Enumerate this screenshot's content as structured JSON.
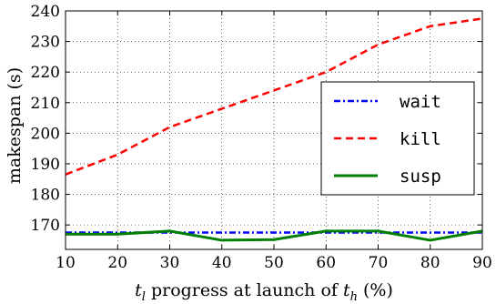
{
  "chart_data": {
    "type": "line",
    "x": [
      10,
      20,
      30,
      40,
      50,
      60,
      70,
      80,
      90
    ],
    "series": [
      {
        "name": "wait",
        "values": [
          167.5,
          167.5,
          167.5,
          167.5,
          167.5,
          167.5,
          167.5,
          167.5,
          167.5
        ],
        "color": "#0000ff",
        "dash": "dash-dot"
      },
      {
        "name": "kill",
        "values": [
          186.5,
          193,
          202,
          208,
          214,
          220,
          229,
          235,
          237.5
        ],
        "color": "#ff0000",
        "dash": "dashed"
      },
      {
        "name": "susp",
        "values": [
          167,
          167,
          168,
          165,
          165.2,
          168,
          168,
          165,
          168
        ],
        "color": "#007f00",
        "dash": "solid"
      }
    ],
    "xlim": [
      10,
      90
    ],
    "ylim": [
      162,
      240
    ],
    "xticks": [
      "10",
      "20",
      "30",
      "40",
      "50",
      "60",
      "70",
      "80",
      "90"
    ],
    "yticks": [
      "170",
      "180",
      "190",
      "200",
      "210",
      "220",
      "230",
      "240"
    ],
    "ytick_values": [
      170,
      180,
      190,
      200,
      210,
      220,
      230,
      240
    ],
    "xlabel": {
      "pre": "t",
      "sub1": "l",
      "mid": " progress at launch of ",
      "t2": "t",
      "sub2": "h",
      "post": " (%)"
    },
    "ylabel": "makespan (s)",
    "grid": true,
    "legend": "right"
  }
}
